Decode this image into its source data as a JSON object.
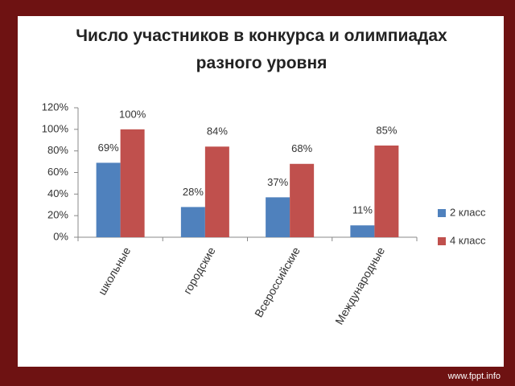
{
  "chart_data": {
    "type": "bar",
    "title": "Число участников в конкурса и олимпиадах разного уровня",
    "categories": [
      "школьные",
      "городские",
      "Всероссийские",
      "Международные"
    ],
    "series": [
      {
        "name": "2 класс",
        "color": "#4f81bd",
        "values": [
          69,
          28,
          37,
          11
        ],
        "value_labels": [
          "69%",
          "28%",
          "37%",
          "11%"
        ]
      },
      {
        "name": "4 класс",
        "color": "#c0504d",
        "values": [
          100,
          84,
          68,
          85
        ],
        "value_labels": [
          "100%",
          "84%",
          "68%",
          "85%"
        ]
      }
    ],
    "ylim": [
      0,
      120
    ],
    "yticks": [
      {
        "value": 0,
        "label": "0%"
      },
      {
        "value": 20,
        "label": "20%"
      },
      {
        "value": 40,
        "label": "40%"
      },
      {
        "value": 60,
        "label": "60%"
      },
      {
        "value": 80,
        "label": "80%"
      },
      {
        "value": 100,
        "label": "100%"
      },
      {
        "value": 120,
        "label": "120%"
      }
    ],
    "grid": false,
    "legend": "right"
  },
  "footer": "www.fppt.info"
}
